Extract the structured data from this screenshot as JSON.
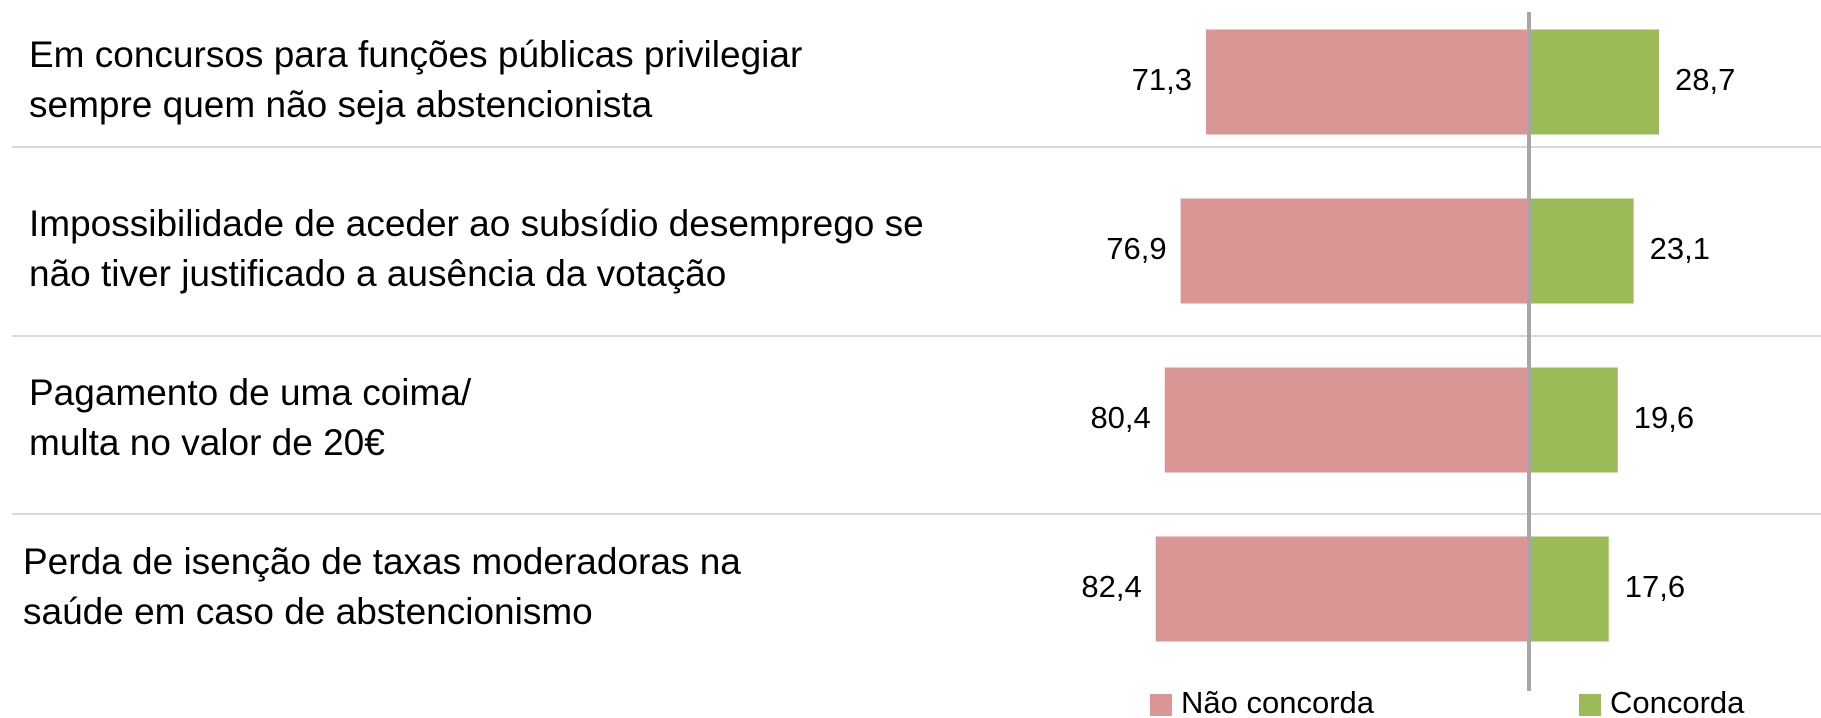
{
  "chart_data": {
    "type": "diverging-bar",
    "categories": [
      [
        "Em concursos para funções públicas privilegiar",
        "sempre quem não seja abstencionista"
      ],
      [
        "Impossibilidade de aceder ao subsídio desemprego se",
        "não tiver justificado a ausência da votação"
      ],
      [
        "Pagamento de uma coima/",
        "multa no valor de 20€"
      ],
      [
        "Perda de isenção de taxas moderadoras na",
        "saúde em caso de abstencionismo"
      ]
    ],
    "series": [
      {
        "name": "Não concorda",
        "color": "#d99694",
        "values": [
          71.3,
          76.9,
          80.4,
          82.4
        ],
        "value_labels": [
          "71,3",
          "76,9",
          "80,4",
          "82,4"
        ]
      },
      {
        "name": "Concorda",
        "color": "#9bbb59",
        "values": [
          28.7,
          23.1,
          19.6,
          17.6
        ],
        "value_labels": [
          "28,7",
          "23,1",
          "19,6",
          "17,6"
        ]
      }
    ]
  }
}
